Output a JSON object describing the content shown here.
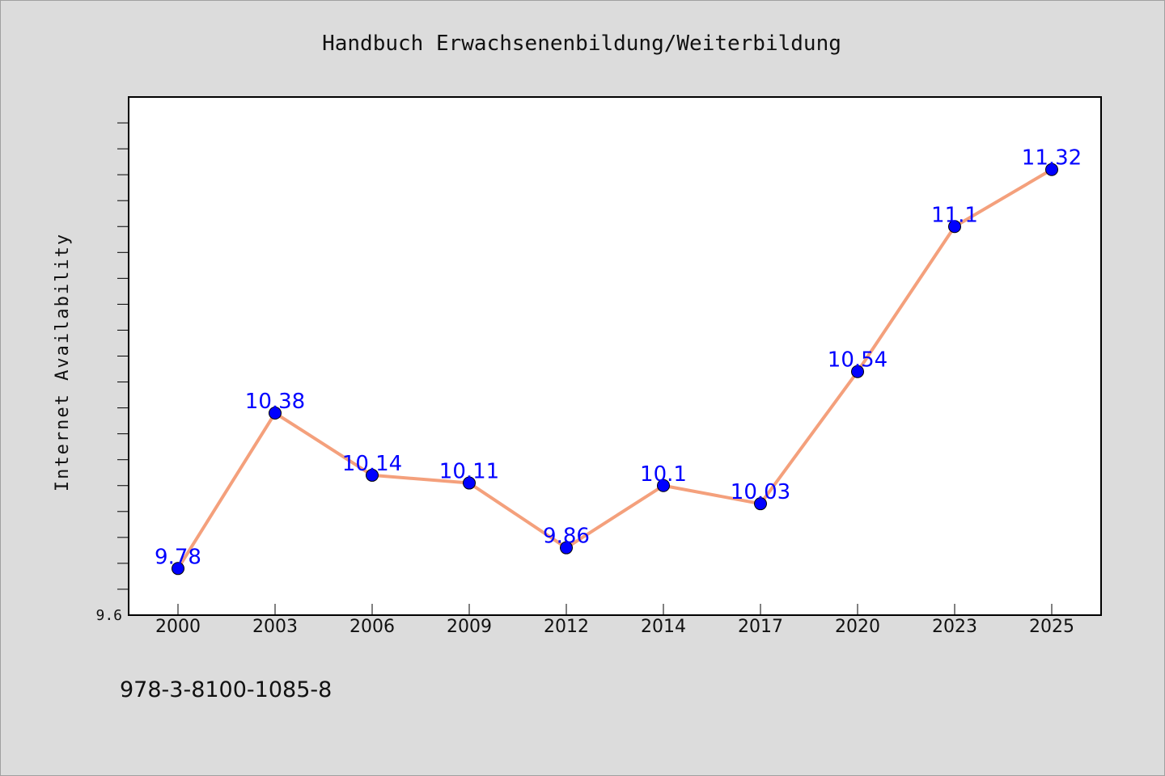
{
  "chart_data": {
    "type": "line",
    "title": "Handbuch Erwachsenenbildung/Weiterbildung",
    "xlabel": "",
    "ylabel": "Internet Availability",
    "categories": [
      "2000",
      "2003",
      "2006",
      "2009",
      "2012",
      "2014",
      "2017",
      "2020",
      "2023",
      "2025"
    ],
    "series": [
      {
        "values": [
          9.78,
          10.38,
          10.14,
          10.11,
          9.86,
          10.1,
          10.03,
          10.54,
          11.1,
          11.32
        ],
        "labels": [
          "9.78",
          "10.38",
          "10.14",
          "10.11",
          "9.86",
          "10.1",
          "10.03",
          "10.54",
          "11.1",
          "11.32"
        ],
        "line_color": "#f4a07c",
        "marker_color": "#0000ff"
      }
    ],
    "ylim": [
      9.6,
      11.6
    ],
    "ytick_labels": [
      "9.6"
    ],
    "grid": false,
    "legend": "none"
  },
  "footer": {
    "isbn": "978-3-8100-1085-8"
  }
}
